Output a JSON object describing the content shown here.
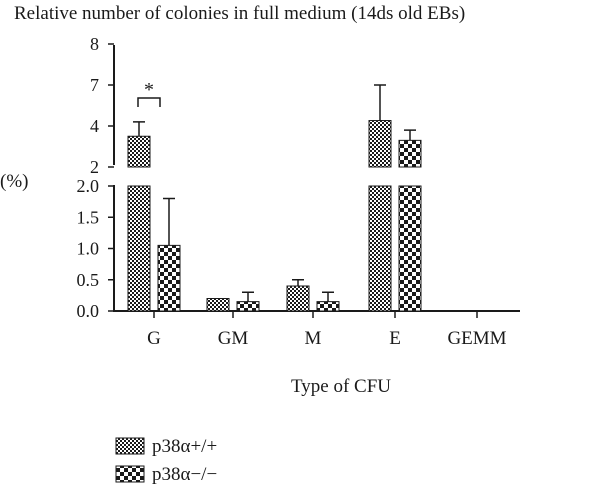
{
  "chart_data": {
    "type": "bar",
    "title": "Relative number of colonies in full medium (14ds old EBs)",
    "xlabel": "Type of CFU",
    "ylabel": "(%)",
    "categories": [
      "G",
      "GM",
      "M",
      "E",
      "GEMM"
    ],
    "series": [
      {
        "name": "p38α+/+",
        "values": [
          3.5,
          0.2,
          0.4,
          4.4,
          0
        ],
        "errors": [
          0.8,
          0,
          0.1,
          2.6,
          0
        ],
        "pattern": "fine-checker"
      },
      {
        "name": "p38α−/−",
        "values": [
          1.05,
          0.15,
          0.15,
          3.3,
          0
        ],
        "errors": [
          0.75,
          0.15,
          0.15,
          0.5,
          0
        ],
        "pattern": "coarse-checker"
      }
    ],
    "axis": {
      "broken": true,
      "lower_segment": {
        "ylim": [
          0,
          2.0
        ],
        "ticks": [
          "0.0",
          "0.5",
          "1.0",
          "1.5",
          "2.0"
        ]
      },
      "upper_segment": {
        "ticks": [
          "2",
          "4",
          "7",
          "8"
        ]
      }
    },
    "annotations": [
      {
        "text": "*",
        "category": "G",
        "between_series": [
          0,
          1
        ]
      }
    ],
    "grid": false,
    "legend": "bottom-left"
  }
}
